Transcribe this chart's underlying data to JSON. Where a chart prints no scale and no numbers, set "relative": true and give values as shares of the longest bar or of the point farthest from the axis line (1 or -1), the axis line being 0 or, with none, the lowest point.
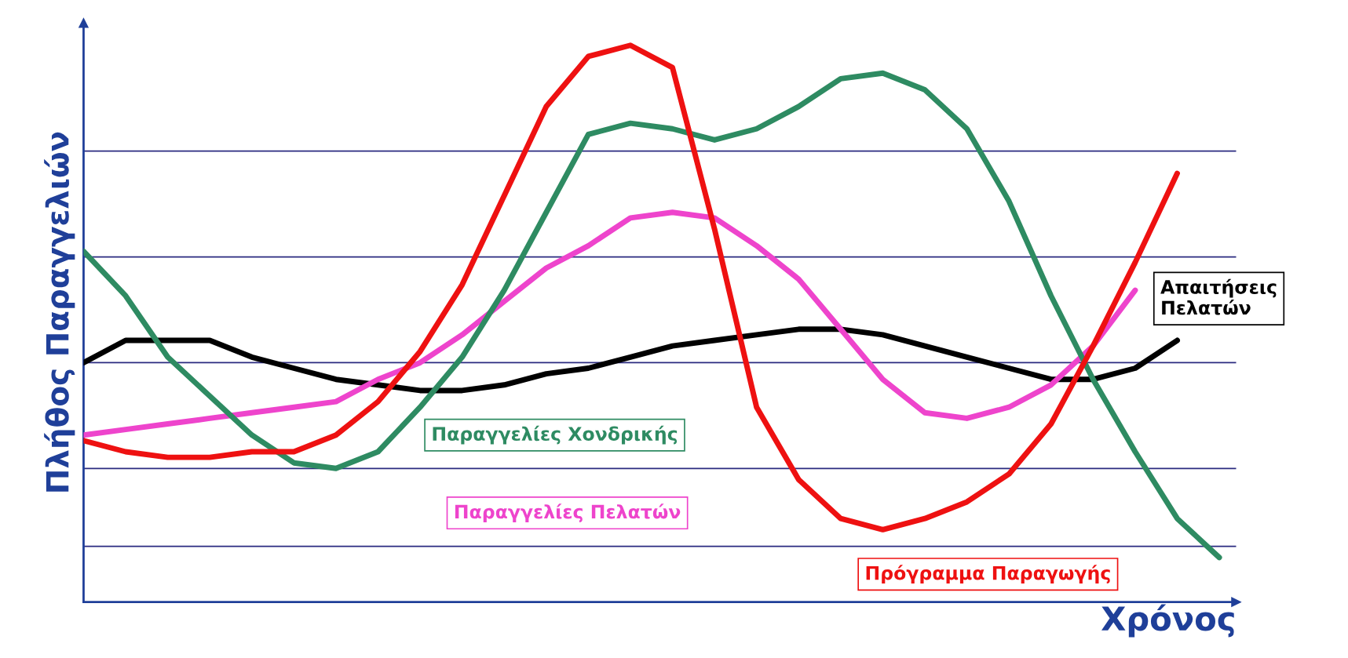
{
  "chart_data": {
    "type": "line",
    "relative": true,
    "xlabel": "Χρόνος",
    "ylabel": "Πλήθος Παραγγελιών",
    "categories": [
      null,
      null,
      null,
      null,
      null,
      null,
      null,
      null,
      null,
      null,
      null,
      null,
      null,
      null,
      null,
      null,
      null,
      null,
      null,
      null,
      null,
      null,
      null,
      null,
      null,
      null,
      null,
      null
    ],
    "series": [
      {
        "name": "Απαιτήσεις Πελατών",
        "color": "#000000",
        "values": [
          0.43,
          0.47,
          0.47,
          0.47,
          0.44,
          0.42,
          0.4,
          0.39,
          0.38,
          0.38,
          0.39,
          0.41,
          0.42,
          0.44,
          0.46,
          0.47,
          0.48,
          0.49,
          0.49,
          0.48,
          0.46,
          0.44,
          0.42,
          0.4,
          0.4,
          0.42,
          0.47,
          null
        ]
      },
      {
        "name": "Παραγγελίες Πελατών",
        "color": "#ee44cc",
        "values": [
          0.3,
          0.31,
          0.32,
          0.33,
          0.34,
          0.35,
          0.36,
          0.4,
          0.43,
          0.48,
          0.54,
          0.6,
          0.64,
          0.69,
          0.7,
          0.69,
          0.64,
          0.58,
          0.49,
          0.4,
          0.34,
          0.33,
          0.35,
          0.39,
          0.46,
          0.56,
          null,
          null
        ]
      },
      {
        "name": "Παραγγελίες Χονδρικής",
        "color": "#2e8b62",
        "values": [
          0.63,
          0.55,
          0.44,
          0.37,
          0.3,
          0.25,
          0.24,
          0.27,
          0.35,
          0.44,
          0.56,
          0.7,
          0.84,
          0.86,
          0.85,
          0.83,
          0.85,
          0.89,
          0.94,
          0.95,
          0.92,
          0.85,
          0.72,
          0.55,
          0.4,
          0.27,
          0.15,
          0.08
        ]
      },
      {
        "name": "Πρόγραμμα Παραγωγής",
        "color": "#ee1111",
        "values": [
          0.29,
          0.27,
          0.26,
          0.26,
          0.27,
          0.27,
          0.3,
          0.36,
          0.45,
          0.57,
          0.73,
          0.89,
          0.98,
          1.0,
          0.96,
          0.67,
          0.35,
          0.22,
          0.15,
          0.13,
          0.15,
          0.18,
          0.23,
          0.32,
          0.46,
          0.61,
          0.77,
          null
        ]
      }
    ],
    "ref_lines": [
      {
        "axis": "y",
        "value": 0.81,
        "color": "#2b2b80"
      },
      {
        "axis": "y",
        "value": 0.62,
        "color": "#2b2b80"
      },
      {
        "axis": "y",
        "value": 0.43,
        "color": "#2b2b80"
      },
      {
        "axis": "y",
        "value": 0.24,
        "color": "#2b2b80"
      },
      {
        "axis": "y",
        "value": 0.1,
        "color": "#2b2b80"
      }
    ],
    "legend": false,
    "marker": "none",
    "line_style": "solid"
  }
}
